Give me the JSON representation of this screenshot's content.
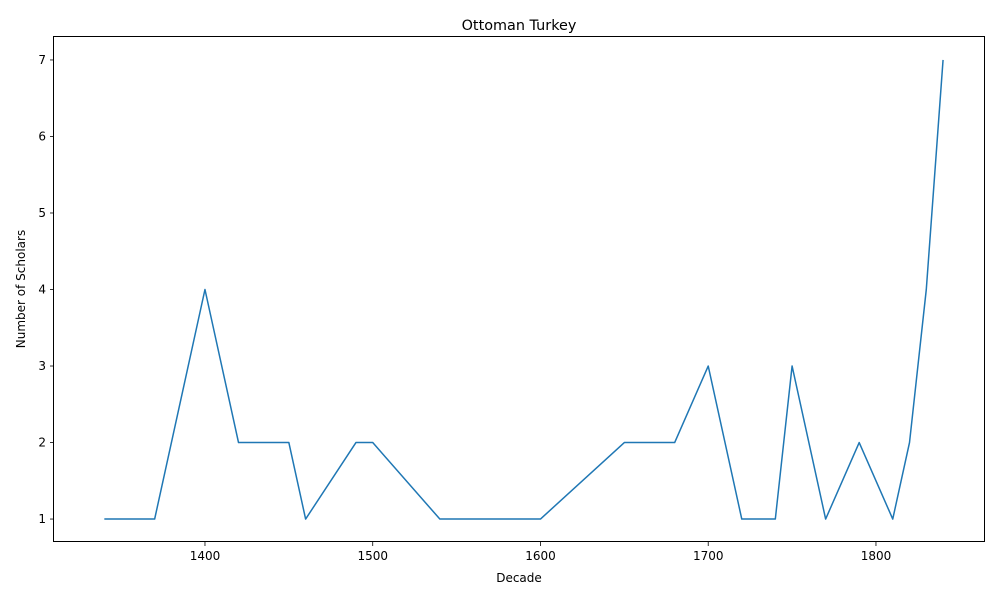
{
  "chart_data": {
    "type": "line",
    "title": "Ottoman Turkey",
    "xlabel": "Decade",
    "ylabel": "Number of Scholars",
    "xlim": [
      1310,
      1865
    ],
    "ylim": [
      0.7,
      7.3
    ],
    "xticks": [
      1400,
      1500,
      1600,
      1700,
      1800
    ],
    "yticks": [
      1,
      2,
      3,
      4,
      5,
      6,
      7
    ],
    "grid": false,
    "series": [
      {
        "color": "#1f77b4",
        "x": [
          1340,
          1370,
          1400,
          1420,
          1450,
          1460,
          1490,
          1500,
          1540,
          1600,
          1650,
          1680,
          1700,
          1720,
          1740,
          1750,
          1770,
          1790,
          1810,
          1820,
          1830,
          1840
        ],
        "y": [
          1,
          1,
          4,
          2,
          2,
          1,
          2,
          2,
          1,
          1,
          2,
          2,
          3,
          1,
          1,
          3,
          1,
          2,
          1,
          2,
          4,
          7
        ]
      }
    ]
  }
}
